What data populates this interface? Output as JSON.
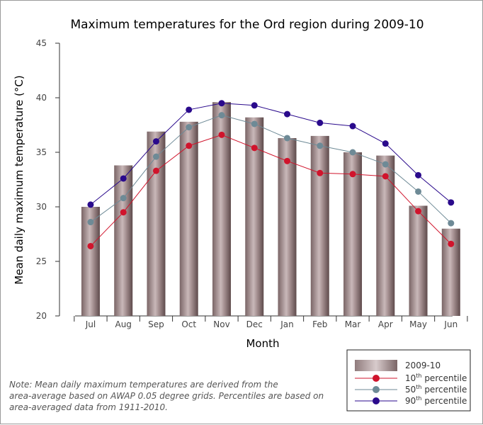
{
  "chart_data": {
    "type": "bar",
    "title": "Maximum temperatures for the Ord region during 2009-10",
    "xlabel": "Month",
    "ylabel": "Mean daily maximum temperature (°C)",
    "ylim": [
      20,
      45
    ],
    "yticks": [
      20,
      25,
      30,
      35,
      40,
      45
    ],
    "categories": [
      "Jul",
      "Aug",
      "Sep",
      "Oct",
      "Nov",
      "Dec",
      "Jan",
      "Feb",
      "Mar",
      "Apr",
      "May",
      "Jun"
    ],
    "bars": {
      "name": "2009-10",
      "values": [
        30.0,
        33.8,
        36.9,
        37.8,
        39.6,
        38.2,
        36.3,
        36.5,
        35.0,
        34.7,
        30.1,
        28.0
      ],
      "color": "#8a7374"
    },
    "series": [
      {
        "name_prefix": "10",
        "name_suffix": "th",
        "name_rest": " percentile",
        "color": "#d0142c",
        "values": [
          26.4,
          29.5,
          33.3,
          35.6,
          36.6,
          35.4,
          34.2,
          33.1,
          33.0,
          32.8,
          29.6,
          26.6
        ]
      },
      {
        "name_prefix": "50",
        "name_suffix": "th",
        "name_rest": " percentile",
        "color": "#6e8a96",
        "values": [
          28.6,
          30.8,
          34.6,
          37.3,
          38.4,
          37.6,
          36.3,
          35.6,
          35.0,
          33.9,
          31.4,
          28.5
        ]
      },
      {
        "name_prefix": "90",
        "name_suffix": "th",
        "name_rest": " percentile",
        "color": "#2a0a8c",
        "values": [
          30.2,
          32.6,
          36.0,
          38.9,
          39.5,
          39.3,
          38.5,
          37.7,
          37.4,
          35.8,
          32.9,
          30.4
        ]
      }
    ],
    "legend_position": "bottom-right",
    "grid": false,
    "note": [
      "Note: Mean daily maximum temperatures are derived from the",
      "area-average based on AWAP 0.05 degree grids. Percentiles are based on",
      "area-averaged data from 1911-2010."
    ]
  }
}
